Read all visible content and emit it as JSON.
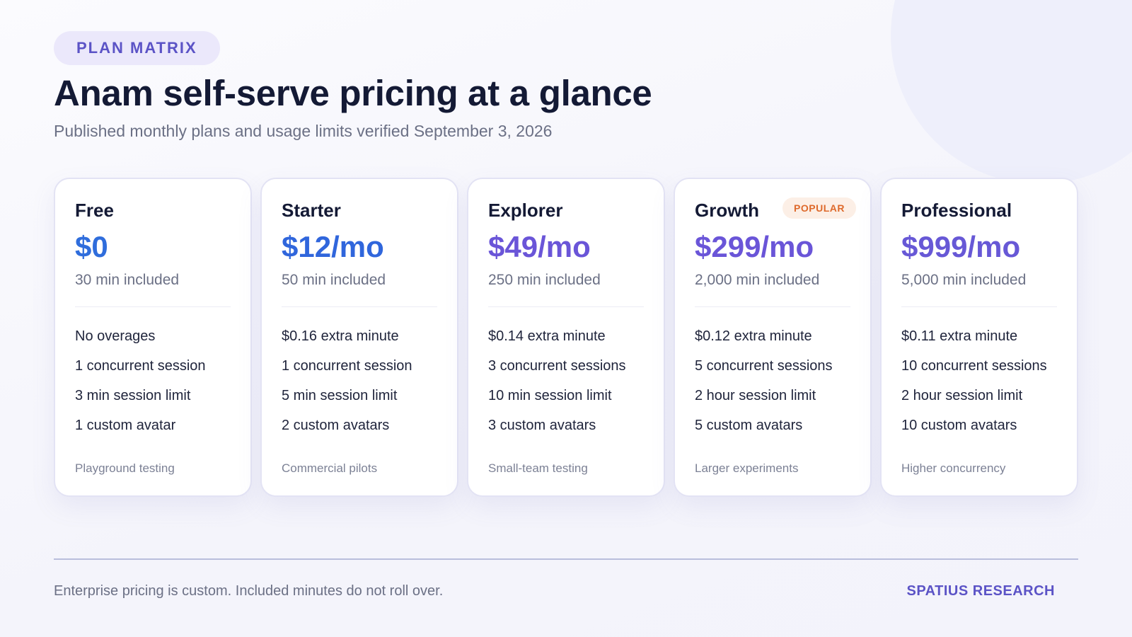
{
  "header": {
    "eyebrow": "PLAN MATRIX",
    "title": "Anam self-serve pricing at a glance",
    "subtitle": "Published monthly plans and usage limits verified September 3, 2026"
  },
  "colors": {
    "accent": "#5b53c6",
    "price_blue": "#2f6ddc",
    "price_purple": "#6a55d8",
    "badge": "#de6a2c"
  },
  "plans": [
    {
      "name": "Free",
      "price": "$0",
      "included": "30 min included",
      "price_color": "#2f6ddc",
      "badge": "",
      "features": [
        "No overages",
        "1 concurrent session",
        "3 min session limit",
        "1 custom avatar"
      ],
      "use_case": "Playground testing"
    },
    {
      "name": "Starter",
      "price": "$12/mo",
      "included": "50 min included",
      "price_color": "#3066dc",
      "badge": "",
      "features": [
        "$0.16 extra minute",
        "1 concurrent session",
        "5 min session limit",
        "2 custom avatars"
      ],
      "use_case": "Commercial pilots"
    },
    {
      "name": "Explorer",
      "price": "$49/mo",
      "included": "250 min included",
      "price_color": "#6a55d8",
      "badge": "",
      "features": [
        "$0.14 extra minute",
        "3 concurrent sessions",
        "10 min session limit",
        "3 custom avatars"
      ],
      "use_case": "Small-team testing"
    },
    {
      "name": "Growth",
      "price": "$299/mo",
      "included": "2,000 min included",
      "price_color": "#6a55d8",
      "badge": "POPULAR",
      "features": [
        "$0.12 extra minute",
        "5 concurrent sessions",
        "2 hour session limit",
        "5 custom avatars"
      ],
      "use_case": "Larger experiments"
    },
    {
      "name": "Professional",
      "price": "$999/mo",
      "included": "5,000 min included",
      "price_color": "#6758d6",
      "badge": "",
      "features": [
        "$0.11 extra minute",
        "10 concurrent sessions",
        "2 hour session limit",
        "10 custom avatars"
      ],
      "use_case": "Higher concurrency"
    }
  ],
  "footer": {
    "note": "Enterprise pricing is custom. Included minutes do not roll over.",
    "brand": "SPATIUS RESEARCH"
  }
}
